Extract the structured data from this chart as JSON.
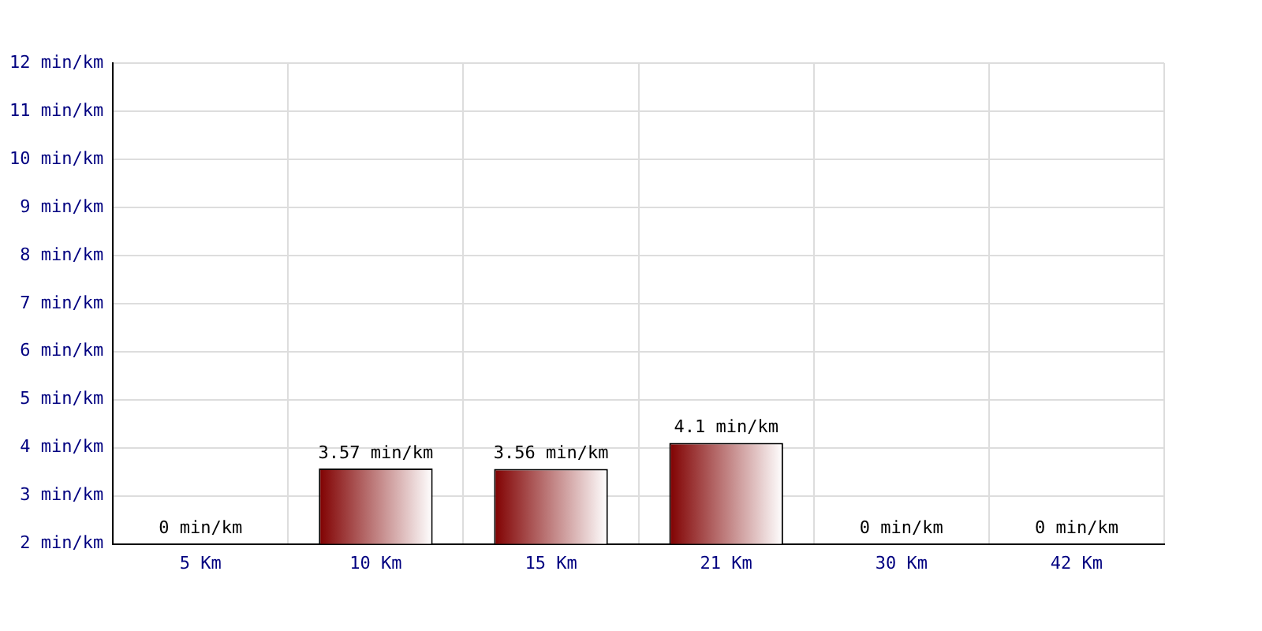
{
  "chart_data": {
    "type": "bar",
    "categories": [
      "5 Km",
      "10 Km",
      "15 Km",
      "21 Km",
      "30 Km",
      "42 Km"
    ],
    "values": [
      null,
      3.57,
      3.56,
      4.1,
      null,
      null
    ],
    "value_labels": [
      "0 min/km",
      "3.57 min/km",
      "3.56 min/km",
      "4.1 min/km",
      "0 min/km",
      "0 min/km"
    ],
    "color": "#800000",
    "ylim": [
      2,
      12
    ],
    "yticks": [
      {
        "value": 2,
        "label": "2 min/km"
      },
      {
        "value": 3,
        "label": "3 min/km"
      },
      {
        "value": 4,
        "label": "4 min/km"
      },
      {
        "value": 5,
        "label": "5 min/km"
      },
      {
        "value": 6,
        "label": "6 min/km"
      },
      {
        "value": 7,
        "label": "7 min/km"
      },
      {
        "value": 8,
        "label": "8 min/km"
      },
      {
        "value": 9,
        "label": "9 min/km"
      },
      {
        "value": 10,
        "label": "10 min/km"
      },
      {
        "value": 11,
        "label": "11 min/km"
      },
      {
        "value": 12,
        "label": "12 min/km"
      }
    ],
    "grid": true
  }
}
